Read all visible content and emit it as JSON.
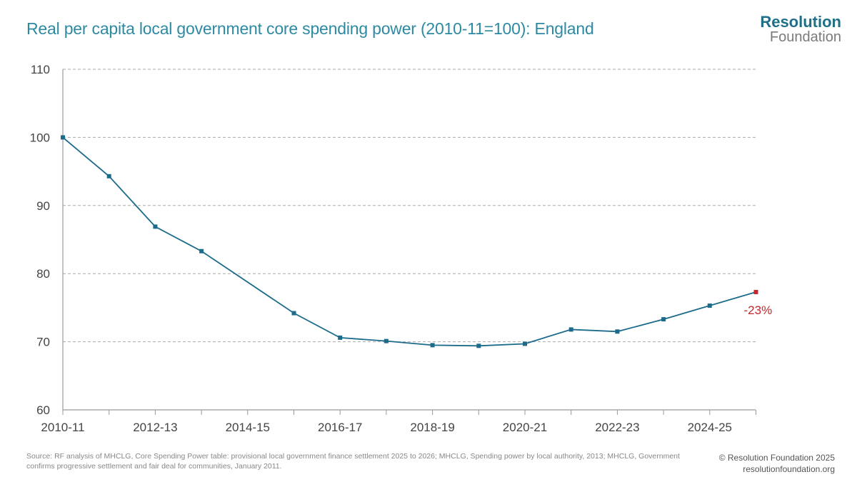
{
  "title": "Real per capita local government core spending power (2010-11=100): England",
  "logo": {
    "line1": "Resolution",
    "line2": "Foundation"
  },
  "footer": {
    "source": "Source: RF analysis of MHCLG, Core Spending Power table: provisional local government finance settlement 2025 to 2026; MHCLG, Spending power by local authority, 2013; MHCLG, Government confirms progressive settlement and fair deal for communities, January 2011.",
    "copyright": "© Resolution Foundation 2025",
    "url": "resolutionfoundation.org"
  },
  "colors": {
    "line": "#1d6b8a",
    "highlight": "#c0282d",
    "title": "#2d8aa3"
  },
  "chart_data": {
    "type": "line",
    "title": "Real per capita local government core spending power (2010-11=100): England",
    "x": [
      "2010-11",
      "2011-12",
      "2012-13",
      "2013-14",
      "2014-15",
      "2015-16",
      "2016-17",
      "2017-18",
      "2018-19",
      "2019-20",
      "2020-21",
      "2021-22",
      "2022-23",
      "2023-24",
      "2024-25",
      "2025-26"
    ],
    "x_tick_labels": [
      "2010-11",
      "2012-13",
      "2014-15",
      "2016-17",
      "2018-19",
      "2020-21",
      "2022-23",
      "2024-25"
    ],
    "series": [
      {
        "values": [
          100.0,
          94.3,
          86.9,
          83.3,
          null,
          74.2,
          70.6,
          70.1,
          69.5,
          69.4,
          69.7,
          71.8,
          71.5,
          73.3,
          75.3,
          77.3
        ]
      }
    ],
    "ylim": [
      60,
      110
    ],
    "yticks": [
      60,
      70,
      80,
      90,
      100,
      110
    ],
    "grid": "horizontal dashed",
    "annotation": {
      "text": "-23%",
      "x": "2025-26",
      "y": 77.3
    }
  }
}
